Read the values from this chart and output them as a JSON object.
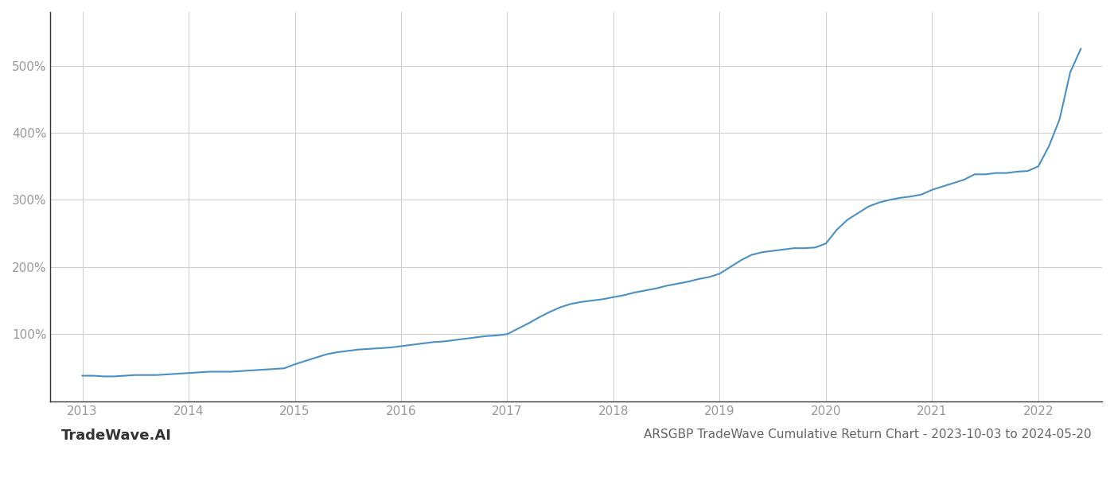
{
  "title": "ARSGBP TradeWave Cumulative Return Chart - 2023-10-03 to 2024-05-20",
  "watermark": "TradeWave.AI",
  "line_color": "#4a90c4",
  "background_color": "#ffffff",
  "grid_color": "#cccccc",
  "tick_color": "#999999",
  "x_years": [
    2013,
    2014,
    2015,
    2016,
    2017,
    2018,
    2019,
    2020,
    2021,
    2022
  ],
  "y_ticks": [
    100,
    200,
    300,
    400,
    500
  ],
  "ylim": [
    0,
    580
  ],
  "xlim": [
    2012.7,
    2022.6
  ],
  "x_data": [
    2013.0,
    2013.1,
    2013.2,
    2013.3,
    2013.4,
    2013.5,
    2013.6,
    2013.7,
    2013.8,
    2013.9,
    2014.0,
    2014.1,
    2014.2,
    2014.3,
    2014.4,
    2014.5,
    2014.6,
    2014.7,
    2014.8,
    2014.9,
    2015.0,
    2015.1,
    2015.2,
    2015.3,
    2015.4,
    2015.5,
    2015.6,
    2015.7,
    2015.8,
    2015.9,
    2016.0,
    2016.1,
    2016.2,
    2016.3,
    2016.4,
    2016.5,
    2016.6,
    2016.7,
    2016.8,
    2016.9,
    2017.0,
    2017.1,
    2017.2,
    2017.3,
    2017.4,
    2017.5,
    2017.6,
    2017.7,
    2017.8,
    2017.9,
    2018.0,
    2018.1,
    2018.2,
    2018.3,
    2018.4,
    2018.5,
    2018.6,
    2018.7,
    2018.8,
    2018.9,
    2019.0,
    2019.1,
    2019.2,
    2019.3,
    2019.4,
    2019.5,
    2019.6,
    2019.7,
    2019.8,
    2019.9,
    2020.0,
    2020.1,
    2020.2,
    2020.3,
    2020.4,
    2020.5,
    2020.6,
    2020.7,
    2020.8,
    2020.9,
    2021.0,
    2021.1,
    2021.2,
    2021.3,
    2021.4,
    2021.5,
    2021.6,
    2021.7,
    2021.8,
    2021.9,
    2022.0,
    2022.1,
    2022.2,
    2022.3,
    2022.4
  ],
  "y_data": [
    38,
    38,
    37,
    37,
    38,
    39,
    39,
    39,
    40,
    41,
    42,
    43,
    44,
    44,
    44,
    45,
    46,
    47,
    48,
    49,
    55,
    60,
    65,
    70,
    73,
    75,
    77,
    78,
    79,
    80,
    82,
    84,
    86,
    88,
    89,
    91,
    93,
    95,
    97,
    98,
    100,
    108,
    116,
    125,
    133,
    140,
    145,
    148,
    150,
    152,
    155,
    158,
    162,
    165,
    168,
    172,
    175,
    178,
    182,
    185,
    190,
    200,
    210,
    218,
    222,
    224,
    226,
    228,
    228,
    229,
    235,
    255,
    270,
    280,
    290,
    296,
    300,
    303,
    305,
    308,
    315,
    320,
    325,
    330,
    338,
    338,
    340,
    340,
    342,
    343,
    350,
    380,
    420,
    490,
    525
  ],
  "line_width": 1.5
}
